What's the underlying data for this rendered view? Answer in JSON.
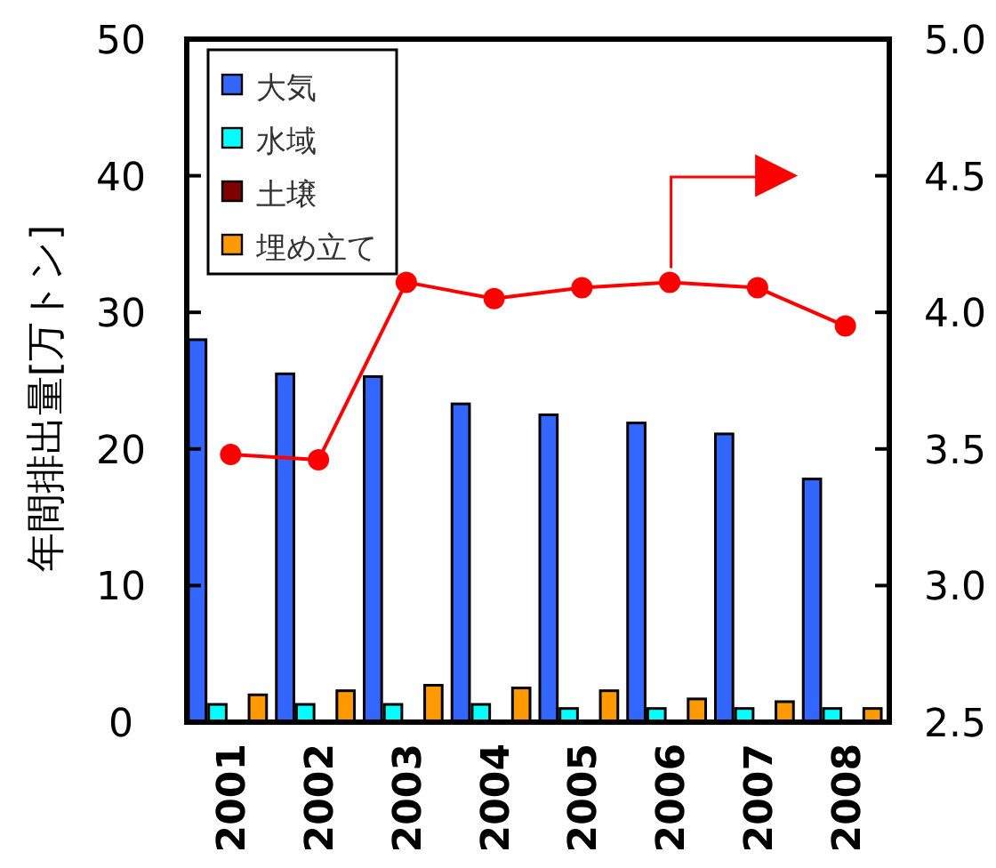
{
  "chart_data": {
    "type": "bar",
    "ylabel": "年間排出量[万トン]",
    "categories": [
      "2001",
      "2002",
      "2003",
      "2004",
      "2005",
      "2006",
      "2007",
      "2008"
    ],
    "series": [
      {
        "name": "大気",
        "color": "#3366ff",
        "values": [
          28.0,
          25.5,
          25.3,
          23.3,
          22.5,
          21.9,
          21.1,
          17.8
        ]
      },
      {
        "name": "水域",
        "color": "#00ffff",
        "values": [
          1.3,
          1.3,
          1.3,
          1.3,
          1.0,
          1.0,
          1.0,
          1.0
        ]
      },
      {
        "name": "土壌",
        "color": "#800000",
        "values": [
          null,
          null,
          null,
          null,
          null,
          null,
          null,
          null
        ]
      },
      {
        "name": "埋め立て",
        "color": "#ff9900",
        "values": [
          2.0,
          2.3,
          2.7,
          2.5,
          2.3,
          1.7,
          1.5,
          1.0
        ]
      },
      {
        "type": "line",
        "axis": "y2",
        "color": "#ff0000",
        "marker": "circle",
        "values": [
          3.48,
          3.46,
          4.11,
          4.05,
          4.09,
          4.11,
          4.09,
          3.95
        ]
      }
    ],
    "ylim": [
      0,
      50
    ],
    "yticks": [
      0,
      10,
      20,
      30,
      40,
      50
    ],
    "y2lim": [
      2.5,
      5.0
    ],
    "y2ticks": [
      2.5,
      {
        "value": 3,
        "label": "3.0"
      },
      3.5,
      {
        "value": 4,
        "label": "4.0"
      },
      4.5,
      {
        "value": 5,
        "label": "5.0"
      }
    ],
    "legend": "top left"
  }
}
